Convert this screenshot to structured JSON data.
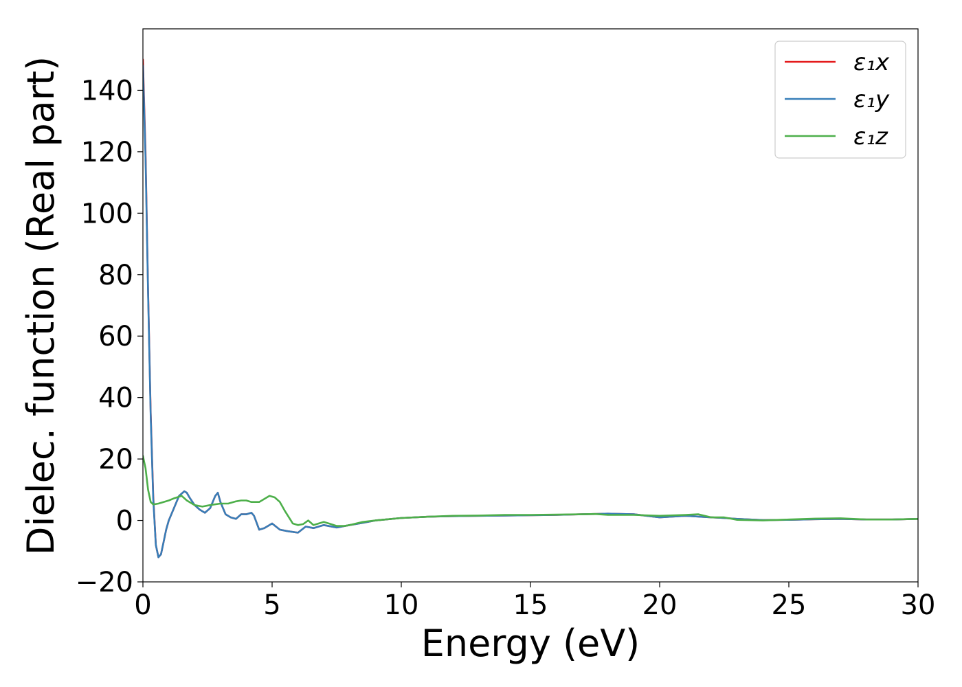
{
  "chart_data": {
    "type": "line",
    "title": "",
    "xlabel": "Energy (eV)",
    "ylabel": "Dielec. function (Real part)",
    "xlim": [
      0,
      30
    ],
    "ylim": [
      -20,
      160
    ],
    "xticks": [
      0,
      5,
      10,
      15,
      20,
      25,
      30
    ],
    "xtick_labels": [
      "0",
      "5",
      "10",
      "15",
      "20",
      "25",
      "30"
    ],
    "yticks": [
      -20,
      0,
      20,
      40,
      60,
      80,
      100,
      120,
      140
    ],
    "ytick_labels": [
      "−20",
      "0",
      "20",
      "40",
      "60",
      "80",
      "100",
      "120",
      "140"
    ],
    "grid": false,
    "legend_position": "top-right",
    "series": [
      {
        "name": "ε₁x",
        "color": "#e41a1c",
        "x": [
          0.0,
          0.1,
          0.2,
          0.3,
          0.4,
          0.5,
          0.6,
          0.7,
          0.8,
          0.9,
          1.0,
          1.2,
          1.4,
          1.6,
          1.7,
          1.8,
          2.0,
          2.2,
          2.4,
          2.6,
          2.8,
          2.9,
          3.0,
          3.2,
          3.4,
          3.6,
          3.8,
          4.0,
          4.2,
          4.3,
          4.5,
          4.7,
          5.0,
          5.3,
          5.6,
          6.0,
          6.3,
          6.6,
          7.0,
          7.5,
          8.0,
          8.5,
          9.0,
          10.0,
          11.0,
          12.0,
          13.0,
          14.0,
          15.0,
          16.0,
          17.0,
          17.5,
          18.0,
          19.0,
          20.0,
          21.0,
          22.0,
          22.5,
          23.0,
          24.0,
          25.0,
          26.0,
          27.0,
          28.0,
          29.0,
          30.0
        ],
        "values": [
          150,
          120,
          75,
          35,
          8,
          -8,
          -12,
          -11,
          -7,
          -3,
          0,
          4,
          8,
          9.5,
          9,
          7.5,
          5,
          3.5,
          2.5,
          4,
          8,
          9,
          6,
          2,
          1,
          0.5,
          2,
          2,
          2.5,
          1.5,
          -3,
          -2.5,
          -1,
          -3,
          -3.5,
          -4,
          -2,
          -2.5,
          -1.5,
          -2.3,
          -1.5,
          -0.8,
          0,
          0.8,
          1.2,
          1.4,
          1.5,
          1.6,
          1.7,
          1.8,
          2.0,
          2.1,
          2.2,
          2.0,
          1.0,
          1.5,
          1.0,
          0.8,
          0.5,
          0.1,
          0.2,
          0.4,
          0.5,
          0.3,
          0.3,
          0.5
        ]
      },
      {
        "name": "ε₁y",
        "color": "#377eb8",
        "x": [
          0.0,
          0.1,
          0.2,
          0.3,
          0.4,
          0.5,
          0.6,
          0.7,
          0.8,
          0.9,
          1.0,
          1.2,
          1.4,
          1.6,
          1.7,
          1.8,
          2.0,
          2.2,
          2.4,
          2.6,
          2.8,
          2.9,
          3.0,
          3.2,
          3.4,
          3.6,
          3.8,
          4.0,
          4.2,
          4.3,
          4.5,
          4.7,
          5.0,
          5.3,
          5.6,
          6.0,
          6.3,
          6.6,
          7.0,
          7.5,
          8.0,
          8.5,
          9.0,
          10.0,
          11.0,
          12.0,
          13.0,
          14.0,
          15.0,
          16.0,
          17.0,
          17.5,
          18.0,
          19.0,
          20.0,
          21.0,
          22.0,
          22.5,
          23.0,
          24.0,
          25.0,
          26.0,
          27.0,
          28.0,
          29.0,
          30.0
        ],
        "values": [
          148,
          118,
          74,
          34,
          7,
          -8,
          -12,
          -11,
          -7,
          -3,
          0,
          4,
          8,
          9.5,
          9,
          7.5,
          5,
          3.5,
          2.5,
          4,
          8,
          9,
          6,
          2,
          1,
          0.5,
          2,
          2,
          2.5,
          1.5,
          -3,
          -2.5,
          -1,
          -3,
          -3.5,
          -4,
          -2,
          -2.5,
          -1.5,
          -2.3,
          -1.5,
          -0.8,
          0,
          0.8,
          1.2,
          1.4,
          1.5,
          1.6,
          1.7,
          1.8,
          2.0,
          2.1,
          2.2,
          2.0,
          1.0,
          1.5,
          1.0,
          0.8,
          0.5,
          0.1,
          0.2,
          0.4,
          0.5,
          0.3,
          0.3,
          0.5
        ]
      },
      {
        "name": "ε₁z",
        "color": "#4daf4a",
        "x": [
          0.0,
          0.1,
          0.2,
          0.3,
          0.4,
          0.6,
          0.8,
          1.0,
          1.2,
          1.5,
          1.7,
          2.0,
          2.3,
          2.6,
          3.0,
          3.3,
          3.6,
          3.8,
          4.0,
          4.2,
          4.5,
          4.7,
          4.9,
          5.1,
          5.3,
          5.5,
          5.8,
          6.0,
          6.2,
          6.4,
          6.6,
          6.8,
          7.0,
          7.2,
          7.5,
          7.8,
          8.0,
          8.5,
          9.0,
          10.0,
          11.0,
          12.0,
          13.0,
          14.0,
          15.0,
          16.0,
          17.0,
          17.5,
          18.0,
          19.0,
          20.0,
          21.0,
          21.5,
          22.0,
          22.5,
          23.0,
          24.0,
          25.0,
          26.0,
          27.0,
          28.0,
          29.0,
          30.0
        ],
        "values": [
          21,
          17,
          10,
          6,
          5.2,
          5.5,
          6,
          6.5,
          7.2,
          8,
          6.5,
          5,
          4.5,
          5,
          5.5,
          5.5,
          6.2,
          6.5,
          6.5,
          6,
          6,
          7,
          8,
          7.5,
          6,
          3,
          -1,
          -1.5,
          -1.2,
          0,
          -1.5,
          -1,
          -0.5,
          -1,
          -1.8,
          -1.8,
          -1.5,
          -0.5,
          0,
          0.8,
          1.2,
          1.5,
          1.6,
          1.8,
          1.8,
          1.9,
          2.0,
          2.1,
          1.8,
          1.8,
          1.5,
          1.8,
          2.0,
          1.0,
          1.0,
          0.2,
          0.0,
          0.3,
          0.6,
          0.7,
          0.3,
          0.3,
          0.5
        ]
      }
    ]
  }
}
